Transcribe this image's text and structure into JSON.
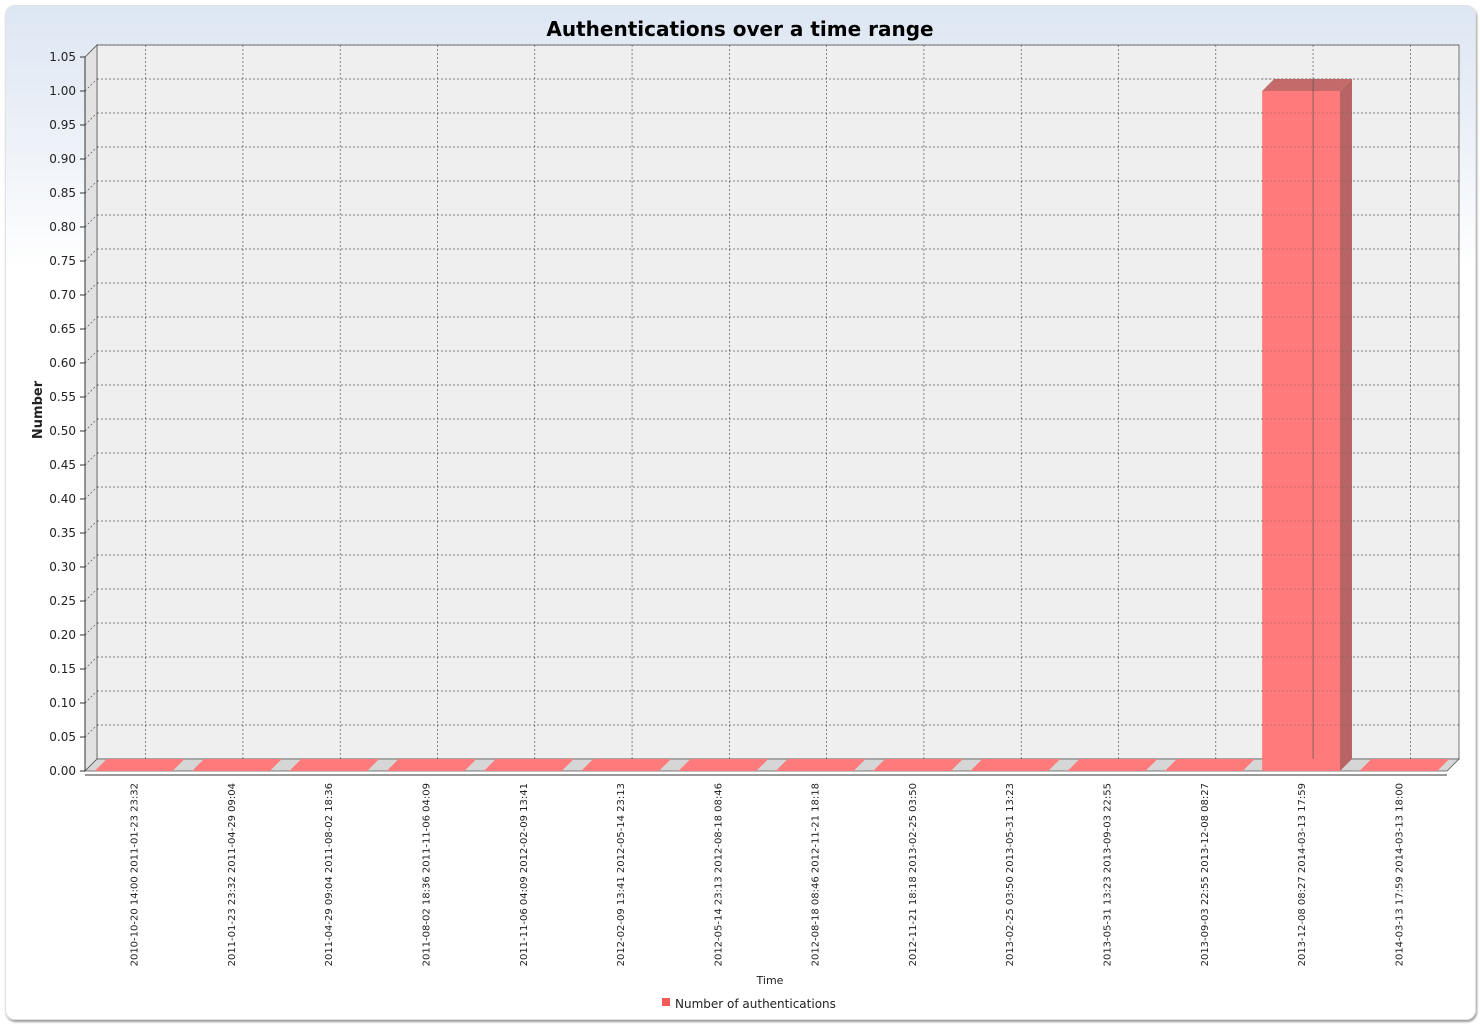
{
  "chart_data": {
    "type": "bar",
    "title": "Authentications over a time range",
    "xlabel": "Time",
    "ylabel": "Number",
    "ylim": [
      0,
      1.05
    ],
    "yticks": [
      0.0,
      0.05,
      0.1,
      0.15,
      0.2,
      0.25,
      0.3,
      0.35,
      0.4,
      0.45,
      0.5,
      0.55,
      0.6,
      0.65,
      0.7,
      0.75,
      0.8,
      0.85,
      0.9,
      0.95,
      1.0,
      1.05
    ],
    "grid": true,
    "legend_position": "bottom",
    "colors": {
      "bar": "#ff7a7a",
      "bar_side": "#b86464",
      "bar_top": "#c56a6a",
      "plot_bg": "#efefef",
      "floor": "#d6d6d6"
    },
    "categories": [
      "2010-10-20 14:00  2011-01-23 23:32",
      "2011-01-23 23:32  2011-04-29 09:04",
      "2011-04-29 09:04  2011-08-02 18:36",
      "2011-08-02 18:36  2011-11-06 04:09",
      "2011-11-06 04:09  2012-02-09 13:41",
      "2012-02-09 13:41  2012-05-14 23:13",
      "2012-05-14 23:13  2012-08-18 08:46",
      "2012-08-18 08:46  2012-11-21 18:18",
      "2012-11-21 18:18  2013-02-25 03:50",
      "2013-02-25 03:50  2013-05-31 13:23",
      "2013-05-31 13:23  2013-09-03 22:55",
      "2013-09-03 22:55  2013-12-08 08:27",
      "2013-12-08 08:27  2014-03-13 17:59",
      "2014-03-13 17:59  2014-03-13 18:00"
    ],
    "series": [
      {
        "name": "Number of authentications",
        "values": [
          0,
          0,
          0,
          0,
          0,
          0,
          0,
          0,
          0,
          0,
          0,
          0,
          1,
          0
        ]
      }
    ]
  }
}
